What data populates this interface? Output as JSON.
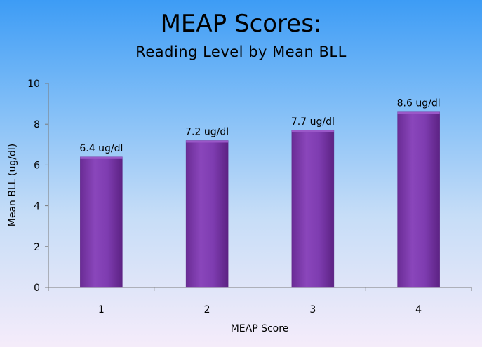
{
  "title": "MEAP Scores:",
  "subtitle": "Reading Level by Mean BLL",
  "colors": {
    "bar": "#7a34a8",
    "bar_light": "#9a58c8",
    "bar_dark": "#5c2283",
    "axis": "#7a7a7a"
  },
  "chart_data": {
    "type": "bar",
    "title": "MEAP Scores:",
    "subtitle": "Reading Level by Mean BLL",
    "categories": [
      "1",
      "2",
      "3",
      "4"
    ],
    "values": [
      6.4,
      7.2,
      7.7,
      8.6
    ],
    "data_labels": [
      "6.4 ug/dl",
      "7.2 ug/dl",
      "7.7 ug/dl",
      "8.6 ug/dl"
    ],
    "xlabel": "MEAP Score",
    "ylabel": "Mean BLL (ug/dl)",
    "ylim": [
      0,
      10
    ],
    "yticks": [
      0,
      2,
      4,
      6,
      8,
      10
    ],
    "grid": false,
    "legend": "none"
  }
}
